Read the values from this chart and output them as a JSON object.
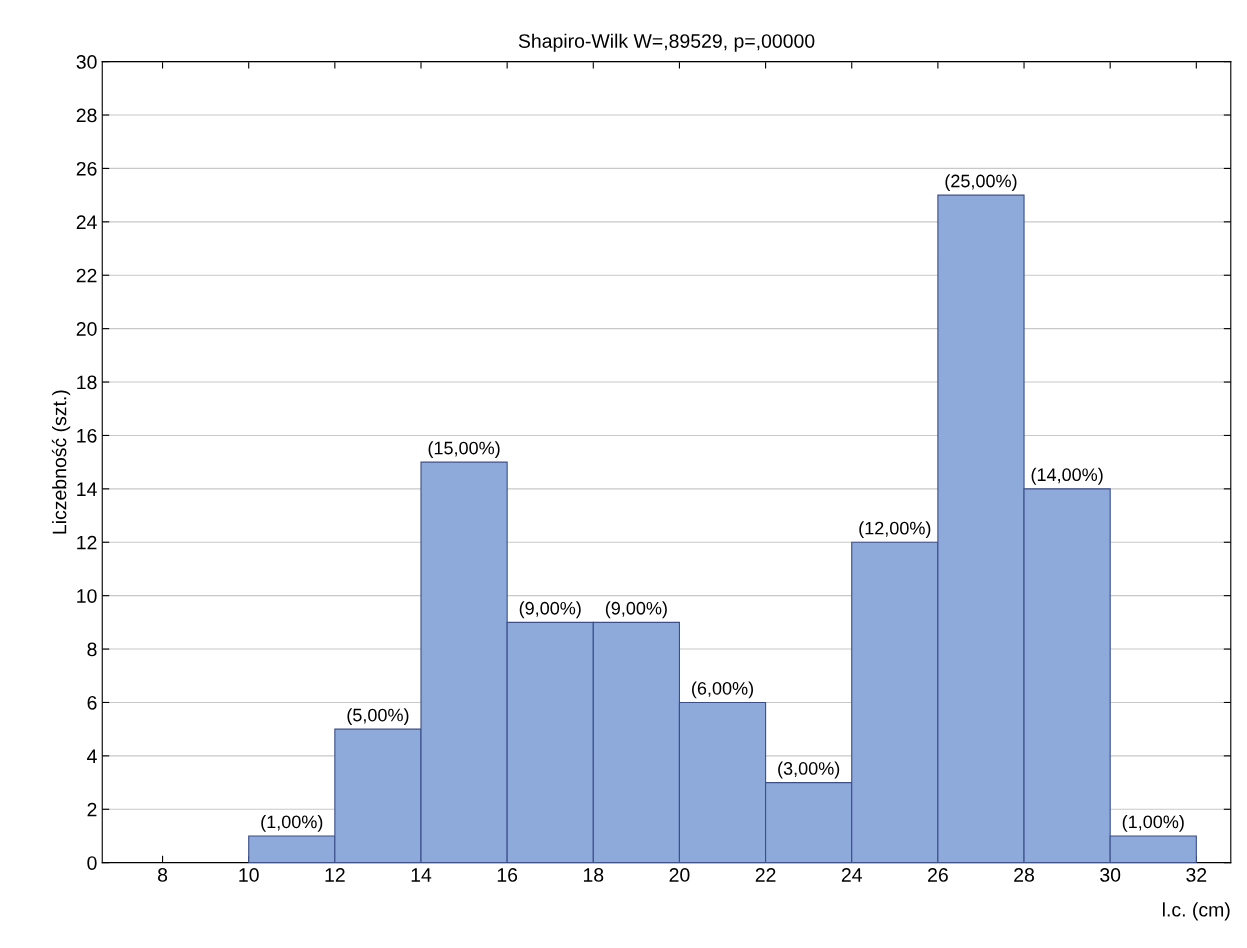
{
  "chart_data": {
    "type": "histogram",
    "title": "Shapiro-Wilk W=,89529, p=,00000",
    "xlabel": "l.c. (cm)",
    "ylabel": "Liczebność (szt.)",
    "bins": [
      10,
      12,
      14,
      16,
      18,
      20,
      22,
      24,
      26,
      28,
      30,
      32
    ],
    "values": [
      1,
      5,
      15,
      9,
      9,
      6,
      3,
      12,
      25,
      14,
      1
    ],
    "value_labels": [
      "(1,00%)",
      "(5,00%)",
      "(15,00%)",
      "(9,00%)",
      "(9,00%)",
      "(6,00%)",
      "(3,00%)",
      "(12,00%)",
      "(25,00%)",
      "(14,00%)",
      "(1,00%)"
    ],
    "color": "#8eaadb",
    "xlim": [
      6.6,
      32.8
    ],
    "xticks": [
      8,
      10,
      12,
      14,
      16,
      18,
      20,
      22,
      24,
      26,
      28,
      30,
      32
    ],
    "ylim": [
      0,
      30
    ],
    "yticks": [
      0,
      2,
      4,
      6,
      8,
      10,
      12,
      14,
      16,
      18,
      20,
      22,
      24,
      26,
      28,
      30
    ],
    "grid": "y",
    "legend": false
  }
}
